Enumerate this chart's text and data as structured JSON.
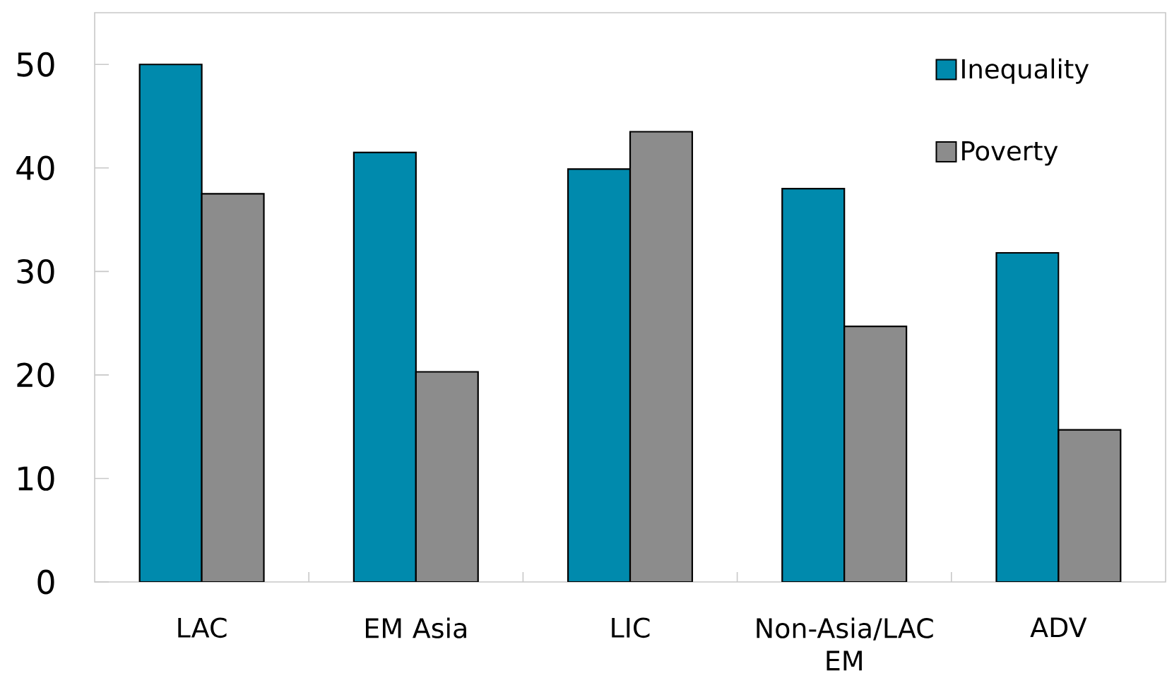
{
  "chart_data": {
    "type": "bar",
    "categories": [
      "LAC",
      "EM Asia",
      "LIC",
      "Non-Asia/LAC EM",
      "ADV"
    ],
    "series": [
      {
        "name": "Inequality",
        "color": "#008aad",
        "values": [
          50.0,
          41.5,
          39.9,
          38.0,
          31.8
        ]
      },
      {
        "name": "Poverty",
        "color": "#8c8c8c",
        "values": [
          37.5,
          20.3,
          43.5,
          24.7,
          14.7
        ]
      }
    ],
    "ylim": [
      0,
      55
    ],
    "yticks": [
      0,
      10,
      20,
      30,
      40,
      50
    ],
    "legend": "top right"
  }
}
